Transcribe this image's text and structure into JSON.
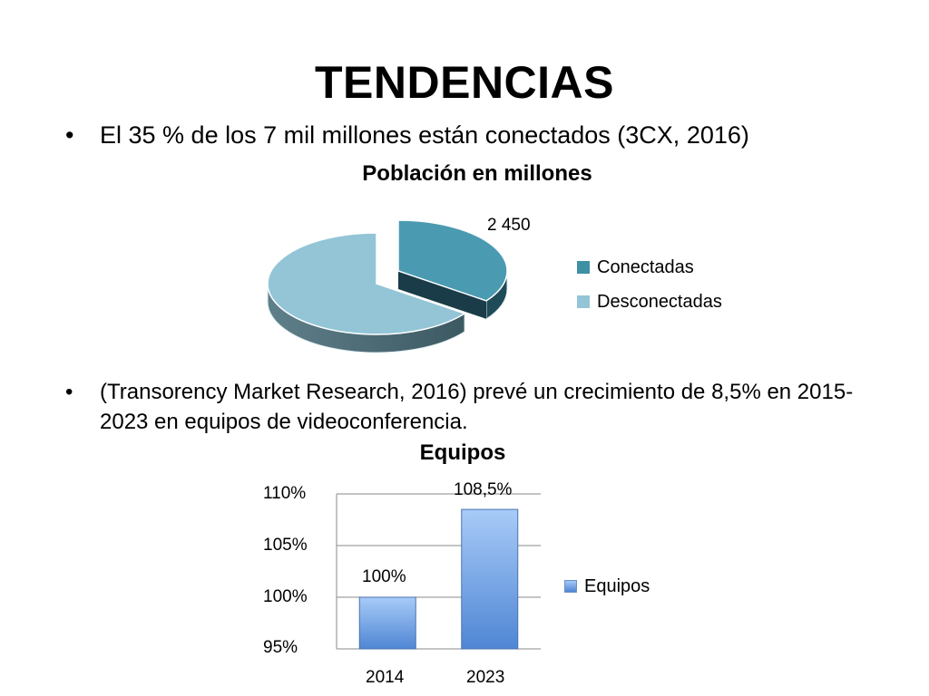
{
  "slide": {
    "title": "TENDENCIAS",
    "bullet_char": "•",
    "bullets": [
      "El 35 % de los 7 mil millones están conectados (3CX, 2016)",
      "(Transorency Market Research, 2016) prevé un crecimiento de 8,5% en 2015-2023 en equipos de videoconferencia."
    ]
  },
  "chart_data": [
    {
      "type": "pie",
      "title": "Población en millones",
      "categories": [
        "Conectadas",
        "Desconectadas"
      ],
      "values": [
        2450,
        4550
      ],
      "data_labels": [
        "2 450"
      ],
      "colors": [
        "#4a9bb2",
        "#93c5d6"
      ],
      "legend": "right"
    },
    {
      "type": "bar",
      "title": "Equipos",
      "categories": [
        "2014",
        "2023"
      ],
      "series": [
        {
          "name": "Equipos",
          "values": [
            100,
            108.5
          ]
        }
      ],
      "data_labels": [
        "100%",
        "108,5%"
      ],
      "y_ticks": [
        "95%",
        "100%",
        "105%",
        "110%"
      ],
      "ylim": [
        95,
        110
      ],
      "grid": true,
      "legend": "right",
      "color": "#6fa3ea"
    }
  ]
}
